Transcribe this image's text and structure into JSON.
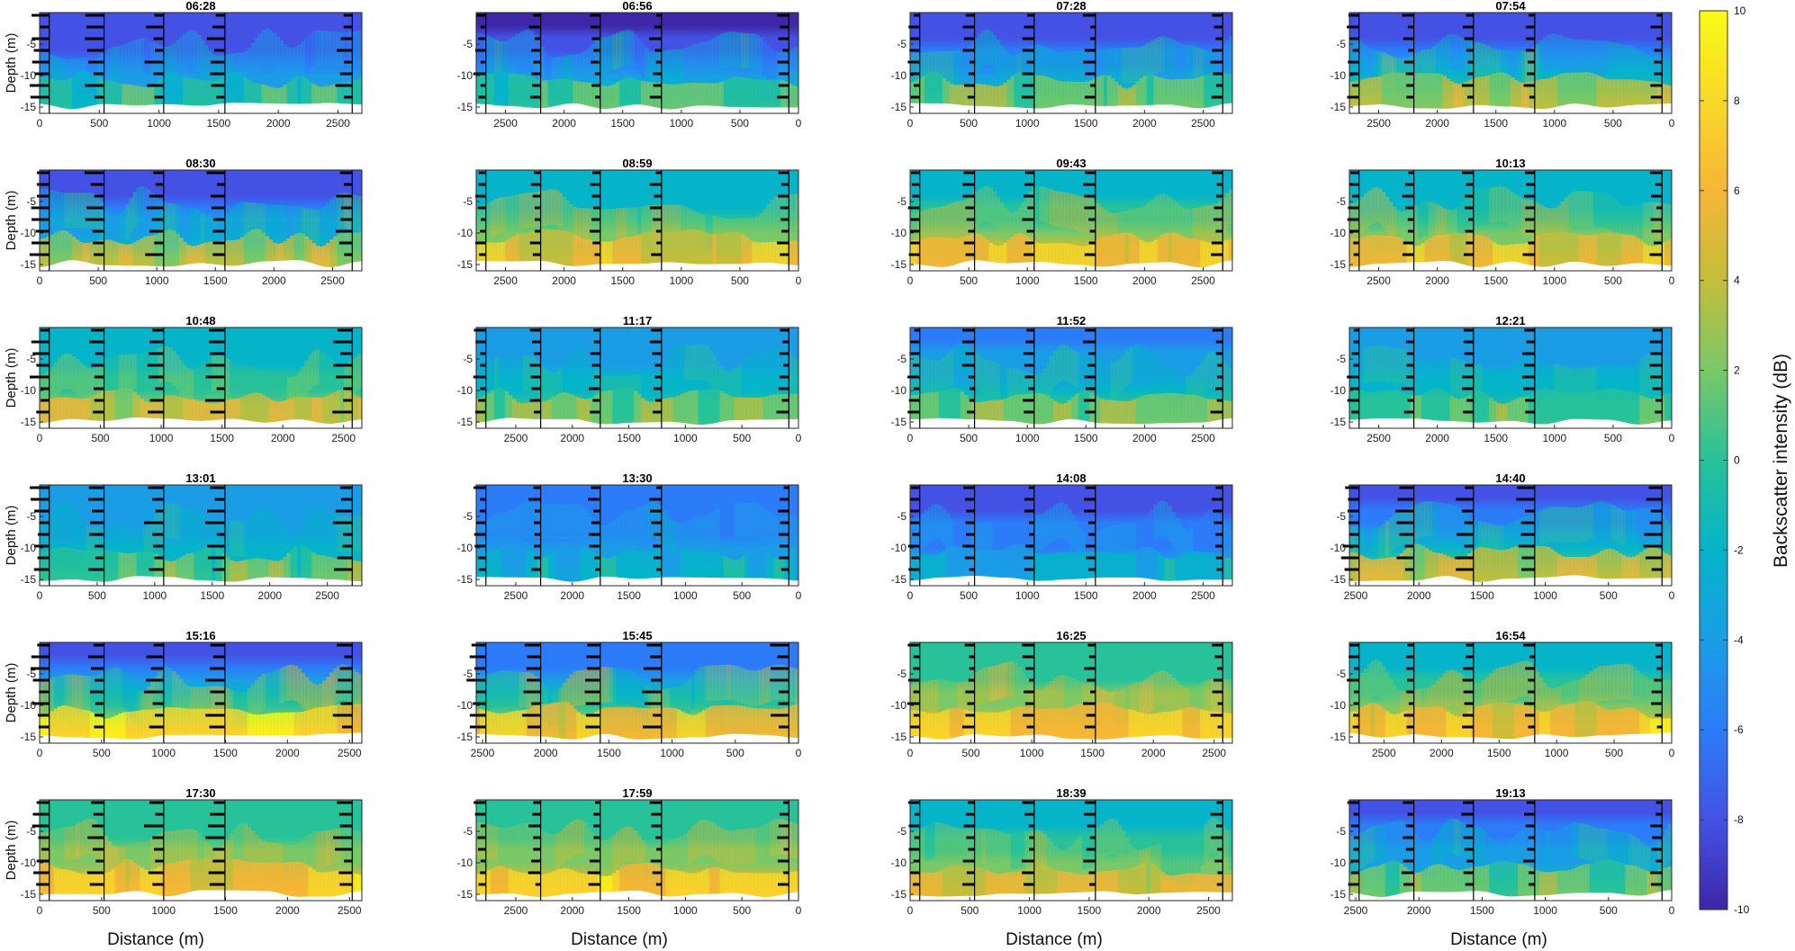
{
  "figure": {
    "y_axis_label": "Depth (m)",
    "x_axis_label": "Distance (m)",
    "colorbar_label": "Backscatter intensity (dB)",
    "colorbar_ticks": [
      "10",
      "8",
      "6",
      "4",
      "2",
      "0",
      "-2",
      "-4",
      "-6",
      "-8",
      "-10"
    ],
    "colormap": [
      "#3e26a8",
      "#4352e4",
      "#2c7cf9",
      "#1b9de6",
      "#05b4c8",
      "#27c19a",
      "#7ac867",
      "#c4bd3c",
      "#f6b636",
      "#f9d82a",
      "#f9fb15"
    ],
    "y_ticks": [
      "-5",
      "-10",
      "-15"
    ]
  },
  "chart_data": [
    {
      "type": "heatmap",
      "title": "06:28",
      "x_ticks": [
        "0",
        "500",
        "1000",
        "1500",
        "2000",
        "2500"
      ],
      "xlim": [
        0,
        2700
      ],
      "reversed": false,
      "ylim": [
        -16,
        0
      ],
      "clim": [
        -10,
        10
      ]
    },
    {
      "type": "heatmap",
      "title": "06:56",
      "x_ticks": [
        "2500",
        "2000",
        "1500",
        "1000",
        "500",
        "0"
      ],
      "xlim": [
        2750,
        0
      ],
      "reversed": true,
      "ylim": [
        -16,
        0
      ],
      "clim": [
        -10,
        10
      ]
    },
    {
      "type": "heatmap",
      "title": "07:28",
      "x_ticks": [
        "0",
        "500",
        "1000",
        "1500",
        "2000",
        "2500"
      ],
      "xlim": [
        0,
        2750
      ],
      "reversed": false,
      "ylim": [
        -16,
        0
      ],
      "clim": [
        -10,
        10
      ]
    },
    {
      "type": "heatmap",
      "title": "07:54",
      "x_ticks": [
        "2500",
        "2000",
        "1500",
        "1000",
        "500",
        "0"
      ],
      "xlim": [
        2750,
        0
      ],
      "reversed": true,
      "ylim": [
        -16,
        0
      ],
      "clim": [
        -10,
        10
      ]
    },
    {
      "type": "heatmap",
      "title": "08:30",
      "x_ticks": [
        "0",
        "500",
        "1000",
        "1500",
        "2000",
        "2500"
      ],
      "xlim": [
        0,
        2750
      ],
      "reversed": false,
      "ylim": [
        -16,
        0
      ],
      "clim": [
        -10,
        10
      ]
    },
    {
      "type": "heatmap",
      "title": "08:59",
      "x_ticks": [
        "2500",
        "2000",
        "1500",
        "1000",
        "500",
        "0"
      ],
      "xlim": [
        2750,
        0
      ],
      "reversed": true,
      "ylim": [
        -16,
        0
      ],
      "clim": [
        -10,
        10
      ]
    },
    {
      "type": "heatmap",
      "title": "09:43",
      "x_ticks": [
        "0",
        "500",
        "1000",
        "1500",
        "2000",
        "2500"
      ],
      "xlim": [
        0,
        2750
      ],
      "reversed": false,
      "ylim": [
        -16,
        0
      ],
      "clim": [
        -10,
        10
      ]
    },
    {
      "type": "heatmap",
      "title": "10:13",
      "x_ticks": [
        "2500",
        "2000",
        "1500",
        "1000",
        "500",
        "0"
      ],
      "xlim": [
        2750,
        0
      ],
      "reversed": true,
      "ylim": [
        -16,
        0
      ],
      "clim": [
        -10,
        10
      ]
    },
    {
      "type": "heatmap",
      "title": "10:48",
      "x_ticks": [
        "0",
        "500",
        "1000",
        "1500",
        "2000",
        "2500"
      ],
      "xlim": [
        0,
        2650
      ],
      "reversed": false,
      "ylim": [
        -16,
        0
      ],
      "clim": [
        -10,
        10
      ]
    },
    {
      "type": "heatmap",
      "title": "11:17",
      "x_ticks": [
        "2500",
        "2000",
        "1500",
        "1000",
        "500",
        "0"
      ],
      "xlim": [
        2850,
        0
      ],
      "reversed": true,
      "ylim": [
        -16,
        0
      ],
      "clim": [
        -10,
        10
      ]
    },
    {
      "type": "heatmap",
      "title": "11:52",
      "x_ticks": [
        "0",
        "500",
        "1000",
        "1500",
        "2000",
        "2500"
      ],
      "xlim": [
        0,
        2750
      ],
      "reversed": false,
      "ylim": [
        -16,
        0
      ],
      "clim": [
        -10,
        10
      ]
    },
    {
      "type": "heatmap",
      "title": "12:21",
      "x_ticks": [
        "2500",
        "2000",
        "1500",
        "1000",
        "500",
        "0"
      ],
      "xlim": [
        2750,
        0
      ],
      "reversed": true,
      "ylim": [
        -16,
        0
      ],
      "clim": [
        -10,
        10
      ]
    },
    {
      "type": "heatmap",
      "title": "13:01",
      "x_ticks": [
        "0",
        "500",
        "1000",
        "1500",
        "2000",
        "2500"
      ],
      "xlim": [
        0,
        2800
      ],
      "reversed": false,
      "ylim": [
        -16,
        0
      ],
      "clim": [
        -10,
        10
      ]
    },
    {
      "type": "heatmap",
      "title": "13:30",
      "x_ticks": [
        "2500",
        "2000",
        "1500",
        "1000",
        "500",
        "0"
      ],
      "xlim": [
        2850,
        0
      ],
      "reversed": true,
      "ylim": [
        -16,
        0
      ],
      "clim": [
        -10,
        10
      ]
    },
    {
      "type": "heatmap",
      "title": "14:08",
      "x_ticks": [
        "0",
        "500",
        "1000",
        "1500",
        "2000",
        "2500"
      ],
      "xlim": [
        0,
        2750
      ],
      "reversed": false,
      "ylim": [
        -16,
        0
      ],
      "clim": [
        -10,
        10
      ]
    },
    {
      "type": "heatmap",
      "title": "14:40",
      "x_ticks": [
        "2500",
        "2000",
        "1500",
        "1000",
        "500",
        "0"
      ],
      "xlim": [
        2550,
        0
      ],
      "reversed": true,
      "ylim": [
        -16,
        0
      ],
      "clim": [
        -10,
        10
      ]
    },
    {
      "type": "heatmap",
      "title": "15:16",
      "x_ticks": [
        "0",
        "500",
        "1000",
        "1500",
        "2000",
        "2500"
      ],
      "xlim": [
        0,
        2600
      ],
      "reversed": false,
      "ylim": [
        -16,
        0
      ],
      "clim": [
        -10,
        10
      ]
    },
    {
      "type": "heatmap",
      "title": "15:45",
      "x_ticks": [
        "2500",
        "2000",
        "1500",
        "1000",
        "500",
        "0"
      ],
      "xlim": [
        2550,
        0
      ],
      "reversed": true,
      "ylim": [
        -16,
        0
      ],
      "clim": [
        -10,
        10
      ]
    },
    {
      "type": "heatmap",
      "title": "16:25",
      "x_ticks": [
        "0",
        "500",
        "1000",
        "1500",
        "2000",
        "2500"
      ],
      "xlim": [
        0,
        2650
      ],
      "reversed": false,
      "ylim": [
        -16,
        0
      ],
      "clim": [
        -10,
        10
      ]
    },
    {
      "type": "heatmap",
      "title": "16:54",
      "x_ticks": [
        "2500",
        "2000",
        "1500",
        "1000",
        "500",
        "0"
      ],
      "xlim": [
        2800,
        0
      ],
      "reversed": true,
      "ylim": [
        -16,
        0
      ],
      "clim": [
        -10,
        10
      ]
    },
    {
      "type": "heatmap",
      "title": "17:30",
      "x_ticks": [
        "0",
        "500",
        "1000",
        "1500",
        "2000",
        "2500"
      ],
      "xlim": [
        0,
        2600
      ],
      "reversed": false,
      "ylim": [
        -16,
        0
      ],
      "clim": [
        -10,
        10
      ]
    },
    {
      "type": "heatmap",
      "title": "17:59",
      "x_ticks": [
        "2500",
        "2000",
        "1500",
        "1000",
        "500",
        "0"
      ],
      "xlim": [
        2850,
        0
      ],
      "reversed": true,
      "ylim": [
        -16,
        0
      ],
      "clim": [
        -10,
        10
      ]
    },
    {
      "type": "heatmap",
      "title": "18:39",
      "x_ticks": [
        "0",
        "500",
        "1000",
        "1500",
        "2000",
        "2500"
      ],
      "xlim": [
        0,
        2700
      ],
      "reversed": false,
      "ylim": [
        -16,
        0
      ],
      "clim": [
        -10,
        10
      ]
    },
    {
      "type": "heatmap",
      "title": "19:13",
      "x_ticks": [
        "2500",
        "2000",
        "1500",
        "1000",
        "500",
        "0"
      ],
      "xlim": [
        2550,
        0
      ],
      "reversed": true,
      "ylim": [
        -16,
        0
      ],
      "clim": [
        -10,
        10
      ]
    }
  ]
}
